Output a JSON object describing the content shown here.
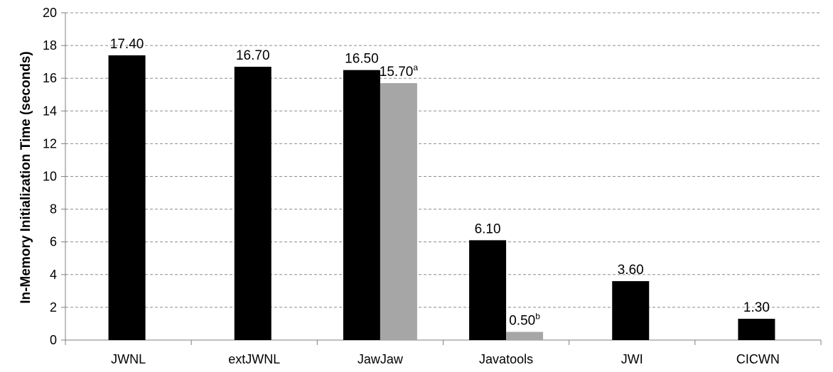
{
  "chart_data": {
    "type": "bar",
    "title": "",
    "xlabel": "",
    "ylabel": "In-Memory Initialization Time (seconds)",
    "ylim": [
      0,
      20
    ],
    "ytick_step": 2,
    "grid": true,
    "categories": [
      "JWNL",
      "extJWNL",
      "JawJaw",
      "Javatools",
      "JWI",
      "CICWN"
    ],
    "series": [
      {
        "color": "#000000",
        "values": [
          17.4,
          16.7,
          16.5,
          6.1,
          3.6,
          1.3
        ],
        "labels": [
          "17.40",
          "16.70",
          "16.50",
          "6.10",
          "3.60",
          "1.30"
        ],
        "label_sup": [
          "",
          "",
          "",
          "",
          "",
          ""
        ]
      },
      {
        "color": "#a6a6a6",
        "values": [
          null,
          null,
          15.7,
          0.5,
          null,
          null
        ],
        "labels": [
          "",
          "",
          "15.70",
          "0.50",
          "",
          ""
        ],
        "label_sup": [
          "",
          "",
          "a",
          "b",
          "",
          ""
        ]
      }
    ]
  }
}
